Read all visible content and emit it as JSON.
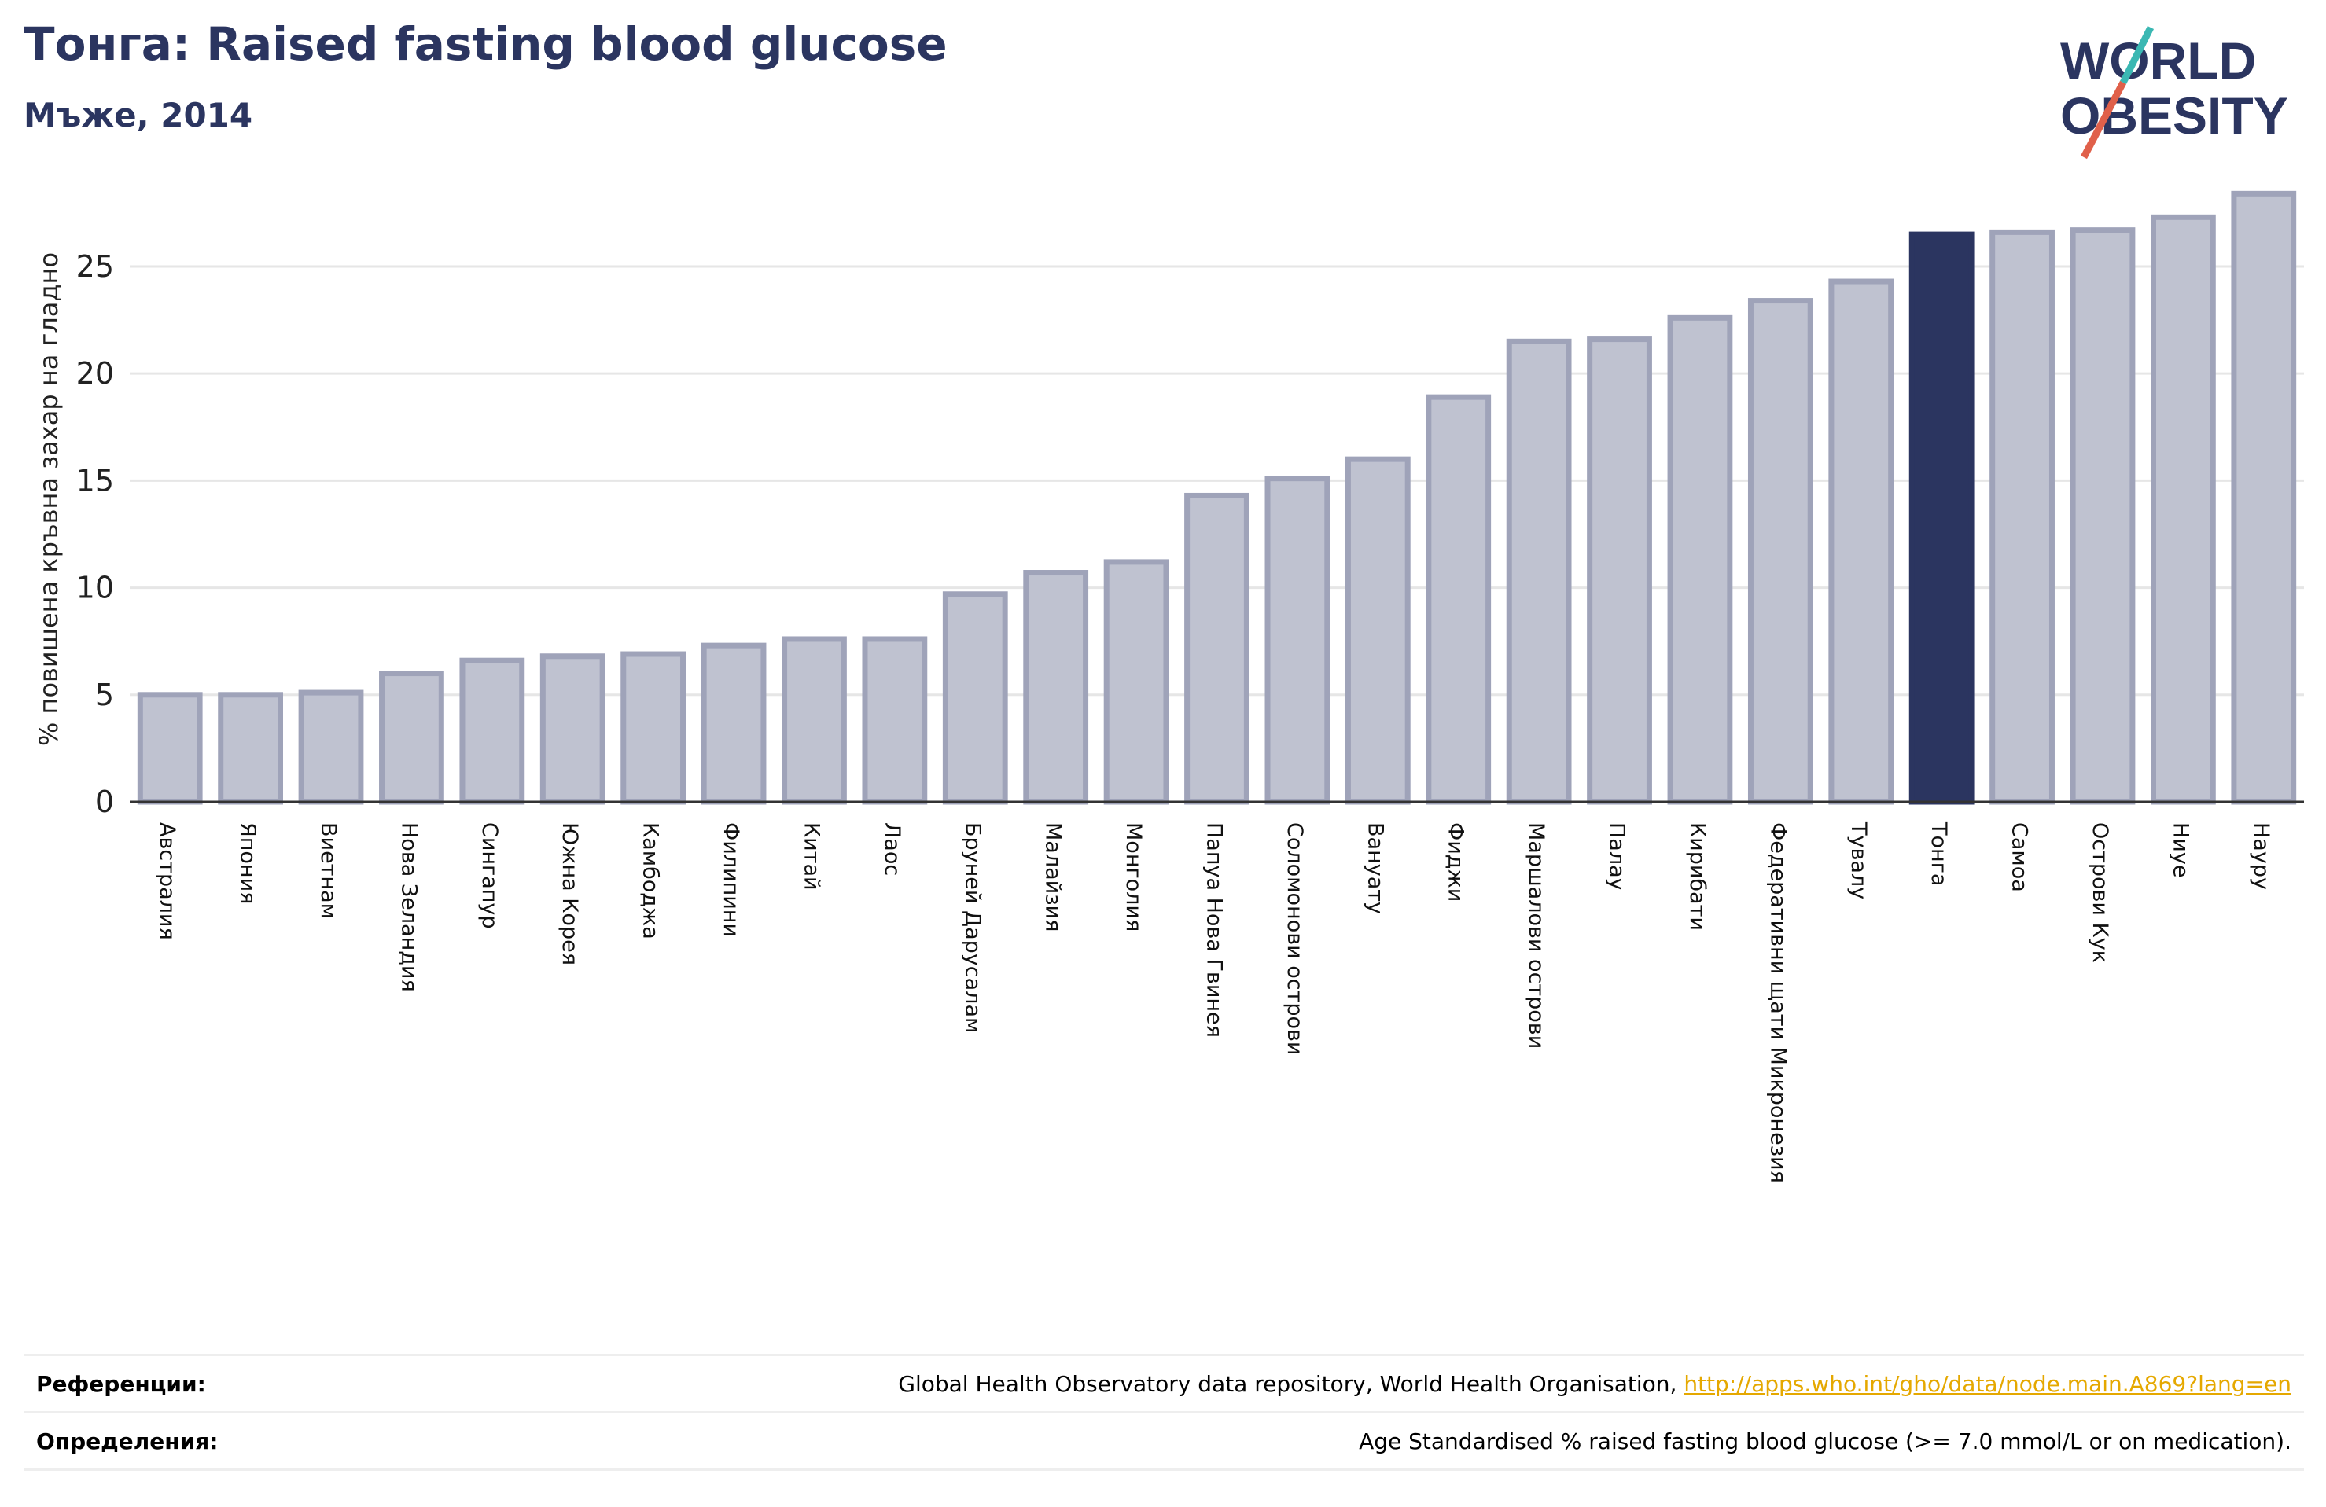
{
  "header": {
    "title": "Тонга: Raised fasting blood glucose",
    "subtitle": "Мъже, 2014"
  },
  "logo": {
    "line1": "WORLD",
    "line2": "OBESITY",
    "colors": {
      "text": "#2b3560",
      "slash_top": "#3bb8b3",
      "slash_bottom": "#e0604a"
    }
  },
  "colors": {
    "bar": "#bfc2d0",
    "bar_border": "#9fa3b9",
    "highlight": "#2b3560",
    "grid": "#e6e6e6",
    "axis": "#333333"
  },
  "chart_data": {
    "type": "bar",
    "ylabel": "% повишена кръвна захар на гладно",
    "ylim": [
      0,
      29
    ],
    "yticks": [
      0,
      5,
      10,
      15,
      20,
      25
    ],
    "grid": true,
    "highlight": "Тонга",
    "categories": [
      "Австралия",
      "Япония",
      "Виетнам",
      "Нова Зеландия",
      "Сингапур",
      "Южна Корея",
      "Камбоджа",
      "Филипини",
      "Китай",
      "Лаос",
      "Бруней Дарусалам",
      "Малайзия",
      "Монголия",
      "Папуа Нова Гвинея",
      "Соломонови острови",
      "Вануату",
      "Фиджи",
      "Маршалови острови",
      "Палау",
      "Кирибати",
      "Федеративни щати Микронезия",
      "Тувалу",
      "Тонга",
      "Самоа",
      "Острови Кук",
      "Ниуе",
      "Науру"
    ],
    "values": [
      5.0,
      5.0,
      5.1,
      6.0,
      6.6,
      6.8,
      6.9,
      7.3,
      7.6,
      7.6,
      9.7,
      10.7,
      11.2,
      14.3,
      15.1,
      16.0,
      18.9,
      21.5,
      21.6,
      22.6,
      23.4,
      24.3,
      26.5,
      26.6,
      26.7,
      27.3,
      28.4
    ]
  },
  "references": {
    "label": "Референции:",
    "text": "Global Health Observatory data repository, World Health Organisation,",
    "link": "http://apps.who.int/gho/data/node.main.A869?lang=en"
  },
  "definitions": {
    "label": "Определения:",
    "text": "Age Standardised % raised fasting blood glucose (>= 7.0 mmol/L or on medication)."
  }
}
